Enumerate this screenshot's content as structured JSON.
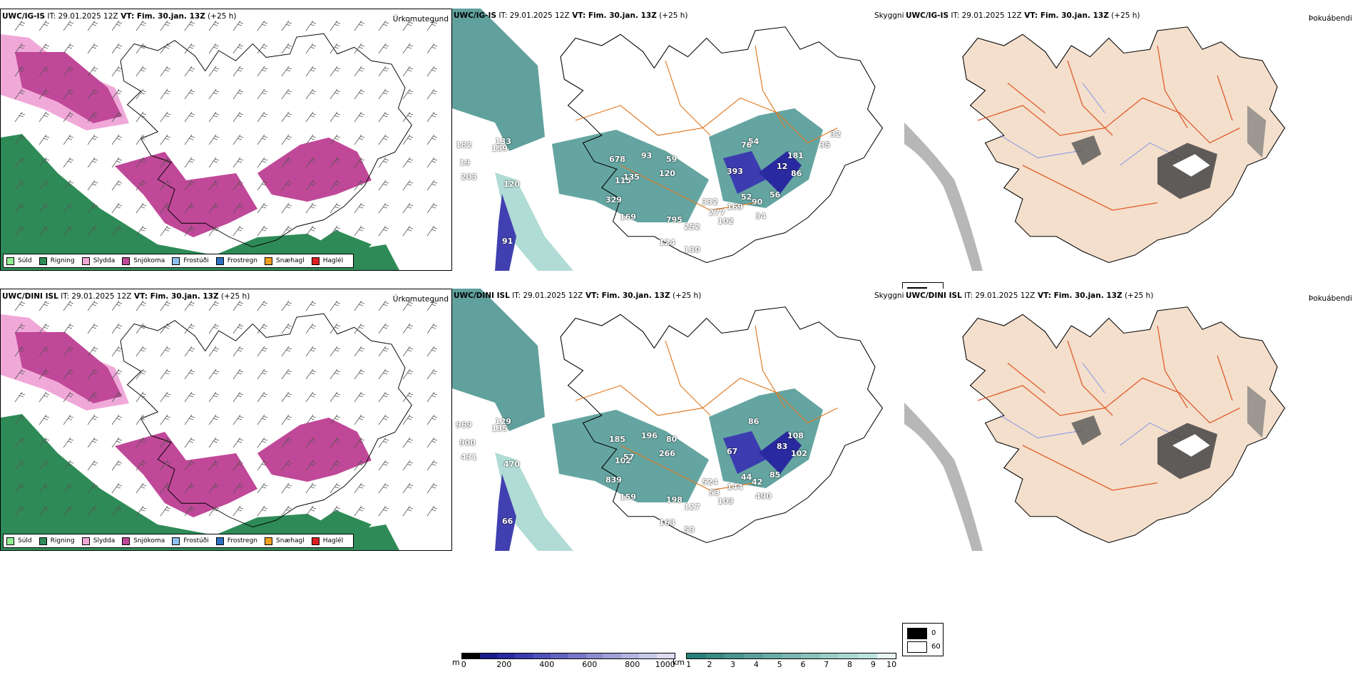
{
  "rows": [
    {
      "model": "UWC/IG-IS",
      "it_label": "IT:",
      "it_value": "29.01.2025 12Z",
      "vt_label": "VT:",
      "vt_value": "Fim. 30.jan. 13Z",
      "lead": "(+25 h)",
      "title_precip": "Úrkomutegund",
      "title_cloud": "Skyggni",
      "title_fog": "Þokuábendi",
      "values": [
        "182",
        "19",
        "203",
        "159",
        "133",
        "120",
        "91",
        "678",
        "93",
        "115",
        "135",
        "120",
        "59",
        "329",
        "169",
        "795",
        "252",
        "124",
        "130",
        "332",
        "277",
        "102",
        "393",
        "52",
        "169",
        "90",
        "34",
        "56",
        "181",
        "86",
        "12",
        "54",
        "76",
        "35",
        "32"
      ]
    },
    {
      "model": "UWC/DINI ISL",
      "it_label": "IT:",
      "it_value": "29.01.2025 12Z",
      "vt_label": "VT:",
      "vt_value": "Fim. 30.jan. 13Z",
      "lead": "(+25 h)",
      "title_precip": "Úrkomutegund",
      "title_cloud": "Skyggni",
      "title_fog": "Þokuábendi",
      "values": [
        "969",
        "900",
        "431",
        "135",
        "129",
        "470",
        "66",
        "185",
        "196",
        "102",
        "57",
        "266",
        "80",
        "839",
        "159",
        "198",
        "127",
        "163",
        "53",
        "524",
        "53",
        "103",
        "67",
        "44",
        "144",
        "42",
        "490",
        "85",
        "108",
        "102",
        "83",
        "86"
      ]
    }
  ],
  "precip_legend": [
    {
      "label": "Súld",
      "color": "#90ee90"
    },
    {
      "label": "Rigning",
      "color": "#2e8b57"
    },
    {
      "label": "Slydda",
      "color": "#f0a8d8"
    },
    {
      "label": "Snjókoma",
      "color": "#c04898"
    },
    {
      "label": "Frostúði",
      "color": "#90c0f0"
    },
    {
      "label": "Frostregn",
      "color": "#3070c0"
    },
    {
      "label": "Snæhagl",
      "color": "#f0a020"
    },
    {
      "label": "Haglél",
      "color": "#e02020"
    }
  ],
  "height_bar": {
    "unit": "m",
    "ticks": [
      "0",
      "200",
      "400",
      "600",
      "800",
      "1000"
    ],
    "colors": [
      "#000000",
      "#1a1a8c",
      "#2a2aa0",
      "#3c3cb0",
      "#5050b8",
      "#6464c0",
      "#7878c8",
      "#8c8cd0",
      "#a0a0d8",
      "#b4b4e0",
      "#c8c8e8",
      "#dcdcf0"
    ]
  },
  "vis_bar": {
    "unit": "km",
    "ticks": [
      "1",
      "2",
      "3",
      "4",
      "5",
      "6",
      "7",
      "8",
      "9",
      "10"
    ],
    "colors": [
      "#2a7f7a",
      "#3a8a85",
      "#4a9590",
      "#5aa09b",
      "#6aaba6",
      "#7ab6b1",
      "#8ac1bc",
      "#9acdc8",
      "#aad8d3",
      "#bae3de",
      "#e8f4f2"
    ]
  },
  "fog_legend": {
    "ticks": [
      "0",
      "60"
    ]
  }
}
